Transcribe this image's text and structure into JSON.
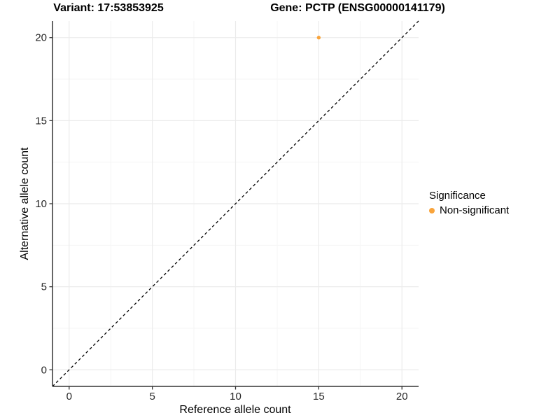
{
  "figure": {
    "title_left": "Variant: 17:53853925",
    "title_right": "Gene: PCTP (ENSG00000141179)"
  },
  "axes": {
    "x_label": "Reference allele count",
    "y_label": "Alternative allele count"
  },
  "legend": {
    "title": "Significance",
    "items": [
      {
        "label": "Non-significant",
        "color": "#F9A43B"
      }
    ]
  },
  "chart_data": {
    "type": "scatter",
    "title": "Variant: 17:53853925  /  Gene: PCTP (ENSG00000141179)",
    "xlabel": "Reference allele count",
    "ylabel": "Alternative allele count",
    "xlim": [
      -1,
      21
    ],
    "ylim": [
      -1,
      21
    ],
    "x_ticks": [
      0,
      5,
      10,
      15,
      20
    ],
    "y_ticks": [
      0,
      5,
      10,
      15,
      20
    ],
    "x_minor_ticks": [
      2.5,
      7.5,
      12.5,
      17.5
    ],
    "y_minor_ticks": [
      2.5,
      7.5,
      12.5,
      17.5
    ],
    "grid": true,
    "legend_position": "right-middle",
    "series": [
      {
        "name": "Non-significant",
        "color": "#F9A43B",
        "marker": "circle",
        "points": [
          {
            "x": 15,
            "y": 20
          }
        ]
      }
    ],
    "reference_line": {
      "style": "dashed",
      "color": "#000000",
      "from": [
        -1,
        -1
      ],
      "to": [
        21,
        21
      ]
    }
  },
  "colors": {
    "point": "#F9A43B",
    "axis_line": "#333333",
    "tick_label": "#262626",
    "grid_major": "#EBEBEB",
    "grid_minor": "#F5F5F5",
    "dashed_line": "#000000",
    "background": "#FFFFFF"
  }
}
